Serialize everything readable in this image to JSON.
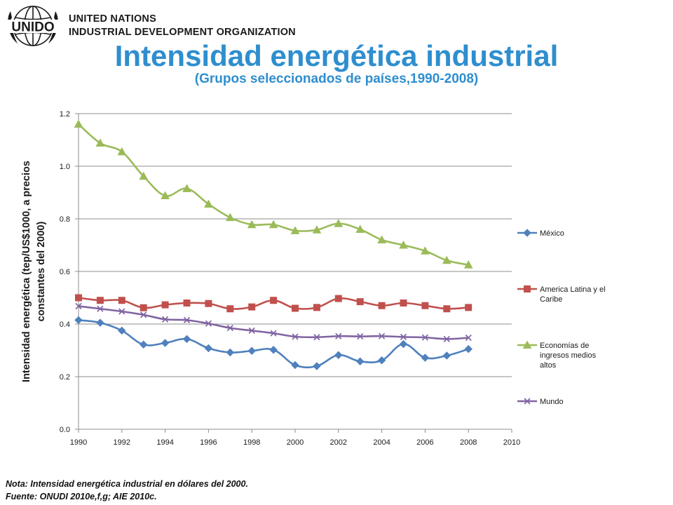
{
  "header": {
    "logo_text": "UNIDO",
    "org_line1": "UNITED NATIONS",
    "org_line2": "INDUSTRIAL DEVELOPMENT ORGANIZATION"
  },
  "slide": {
    "title": "Intensidad energética industrial",
    "subtitle": "(Grupos seleccionados de países,1990-2008)"
  },
  "colors": {
    "title": "#2e8ecf",
    "mexico": "#4f81bd",
    "latam": "#c0504d",
    "economias": "#9bbb59",
    "mundo": "#8064a2"
  },
  "chart_data": {
    "type": "line",
    "ylabel_line1": "Intensidad energética (tep/US$1000, a precios",
    "ylabel_line2": "constantes del 2000)",
    "xlabel": "",
    "xlim": [
      1990,
      2010
    ],
    "ylim": [
      0,
      1.2
    ],
    "x_ticks": [
      "1990",
      "1992",
      "1994",
      "1996",
      "1998",
      "2000",
      "2002",
      "2004",
      "2006",
      "2008",
      "2010"
    ],
    "y_ticks": [
      "0.0",
      "0.2",
      "0.4",
      "0.6",
      "0.8",
      "1.0",
      "1.2"
    ],
    "grid": "horizontal",
    "legend_position": "right",
    "x": [
      1990,
      1991,
      1992,
      1993,
      1994,
      1995,
      1996,
      1997,
      1998,
      1999,
      2000,
      2001,
      2002,
      2003,
      2004,
      2005,
      2006,
      2007,
      2008
    ],
    "series": [
      {
        "name": "México",
        "marker": "diamond",
        "color": "#4f81bd",
        "values": [
          0.415,
          0.405,
          0.375,
          0.322,
          0.328,
          0.343,
          0.308,
          0.292,
          0.298,
          0.302,
          0.244,
          0.24,
          0.282,
          0.258,
          0.262,
          0.324,
          0.272,
          0.28,
          0.305
        ]
      },
      {
        "name": "America Latina y el Caribe",
        "marker": "square",
        "color": "#c0504d",
        "values": [
          0.5,
          0.49,
          0.49,
          0.462,
          0.473,
          0.48,
          0.478,
          0.458,
          0.465,
          0.49,
          0.46,
          0.463,
          0.497,
          0.485,
          0.47,
          0.48,
          0.47,
          0.458,
          0.463
        ]
      },
      {
        "name": "Economías de ingresos medios altos",
        "marker": "triangle",
        "color": "#9bbb59",
        "values": [
          1.16,
          1.088,
          1.055,
          0.962,
          0.888,
          0.915,
          0.856,
          0.805,
          0.778,
          0.778,
          0.755,
          0.758,
          0.782,
          0.76,
          0.72,
          0.7,
          0.678,
          0.642,
          0.625
        ]
      },
      {
        "name": "Mundo",
        "marker": "x",
        "color": "#8064a2",
        "values": [
          0.468,
          0.458,
          0.448,
          0.435,
          0.418,
          0.415,
          0.402,
          0.385,
          0.375,
          0.365,
          0.352,
          0.35,
          0.354,
          0.353,
          0.354,
          0.351,
          0.349,
          0.343,
          0.348
        ]
      }
    ],
    "legend_labels": [
      [
        "México"
      ],
      [
        "America Latina y el",
        "Caribe"
      ],
      [
        "Economías de",
        "ingresos medios",
        "altos"
      ],
      [
        "Mundo"
      ]
    ]
  },
  "notes": {
    "line1": "Nota: Intensidad energética industrial en dólares del 2000.",
    "line2": "Fuente: ONUDI 2010e,f,g; AIE 2010c."
  }
}
